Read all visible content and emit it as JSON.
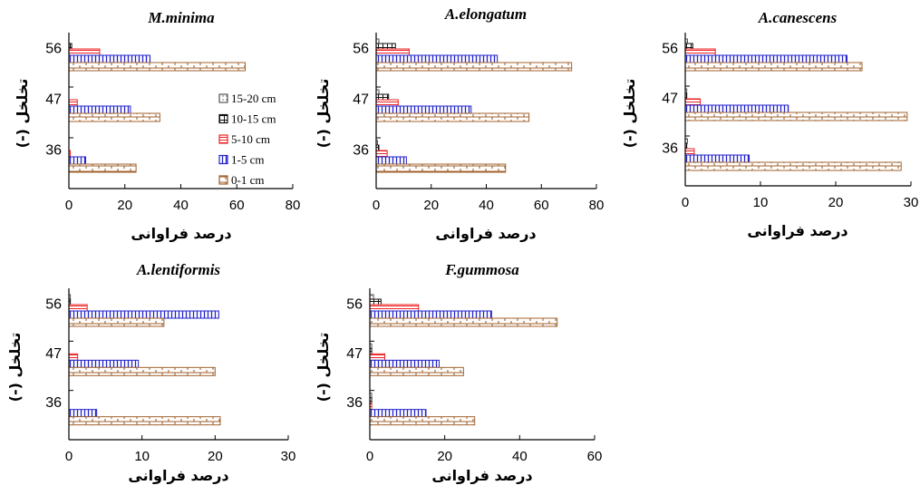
{
  "chart_data": [
    {
      "type": "bar",
      "title": "M.minima",
      "xlabel": "درصد فراوانی",
      "ylabel": "تخلخل (-)",
      "categories": [
        "56",
        "47",
        "36"
      ],
      "xlim": [
        0,
        80
      ],
      "xticks": [
        "0",
        "20",
        "40",
        "60",
        "80"
      ],
      "legend": "inside-right",
      "series": [
        {
          "name": "15-20 cm",
          "values": [
            0,
            0,
            0
          ]
        },
        {
          "name": "10-15 cm",
          "values": [
            1,
            0,
            0
          ]
        },
        {
          "name": "5-10 cm",
          "values": [
            11,
            3,
            0.5
          ]
        },
        {
          "name": "1-5 cm",
          "values": [
            29,
            22,
            6
          ]
        },
        {
          "name": "0-1 cm",
          "values": [
            63,
            32.5,
            24
          ]
        }
      ]
    },
    {
      "type": "bar",
      "title": "A.elongatum",
      "xlabel": "درصد فراوانی",
      "ylabel": "تخلخل (-)",
      "categories": [
        "56",
        "47",
        "36"
      ],
      "xlim": [
        0,
        80
      ],
      "xticks": [
        "0",
        "20",
        "40",
        "60",
        "80"
      ],
      "series": [
        {
          "name": "15-20 cm",
          "values": [
            1,
            1,
            0.5
          ]
        },
        {
          "name": "10-15 cm",
          "values": [
            7,
            4.5,
            1
          ]
        },
        {
          "name": "5-10 cm",
          "values": [
            12,
            8,
            4
          ]
        },
        {
          "name": "1-5 cm",
          "values": [
            44,
            34.5,
            11
          ]
        },
        {
          "name": "0-1 cm",
          "values": [
            71,
            55.5,
            47
          ]
        }
      ]
    },
    {
      "type": "bar",
      "title": "A.canescens",
      "xlabel": "درصد فراوانی",
      "ylabel": "تخلخل (-)",
      "categories": [
        "56",
        "47",
        "36"
      ],
      "xlim": [
        0,
        30
      ],
      "xticks": [
        "0",
        "10",
        "20",
        "30"
      ],
      "series": [
        {
          "name": "15-20 cm",
          "values": [
            0.3,
            0.2,
            0.3
          ]
        },
        {
          "name": "10-15 cm",
          "values": [
            1,
            0.2,
            0.2
          ]
        },
        {
          "name": "5-10 cm",
          "values": [
            4,
            2,
            1.2
          ]
        },
        {
          "name": "1-5 cm",
          "values": [
            21.5,
            13.7,
            8.5
          ]
        },
        {
          "name": "0-1 cm",
          "values": [
            23.5,
            29.5,
            28.7
          ]
        }
      ]
    },
    {
      "type": "bar",
      "title": "A.lentiformis",
      "xlabel": "درصد فراوانی",
      "ylabel": "تخلخل (-)",
      "categories": [
        "56",
        "47",
        "36"
      ],
      "xlim": [
        0,
        30
      ],
      "xticks": [
        "0",
        "10",
        "20",
        "30"
      ],
      "series": [
        {
          "name": "15-20 cm",
          "values": [
            0.2,
            0,
            0
          ]
        },
        {
          "name": "10-15 cm",
          "values": [
            0.2,
            0,
            0
          ]
        },
        {
          "name": "5-10 cm",
          "values": [
            2.5,
            1.2,
            0
          ]
        },
        {
          "name": "1-5 cm",
          "values": [
            20.5,
            9.5,
            3.8
          ]
        },
        {
          "name": "0-1 cm",
          "values": [
            13,
            20,
            20.7
          ]
        }
      ]
    },
    {
      "type": "bar",
      "title": "F.gummosa",
      "xlabel": "درصد فراوانی",
      "ylabel": "تخلخل (-)",
      "categories": [
        "56",
        "47",
        "36"
      ],
      "xlim": [
        0,
        60
      ],
      "xticks": [
        "0",
        "20",
        "40",
        "60"
      ],
      "series": [
        {
          "name": "15-20 cm",
          "values": [
            1,
            0.5,
            0.5
          ]
        },
        {
          "name": "10-15 cm",
          "values": [
            3,
            0.5,
            0.5
          ]
        },
        {
          "name": "5-10 cm",
          "values": [
            13,
            4,
            0.5
          ]
        },
        {
          "name": "1-5 cm",
          "values": [
            32.5,
            18.5,
            15
          ]
        },
        {
          "name": "0-1 cm",
          "values": [
            50,
            25,
            28
          ]
        }
      ]
    }
  ],
  "series_colors": {
    "15-20 cm": "#555555",
    "10-15 cm": "#111111",
    "5-10 cm": "#ee2222",
    "1-5 cm": "#2222cc",
    "0-1 cm": "#a0622d"
  }
}
